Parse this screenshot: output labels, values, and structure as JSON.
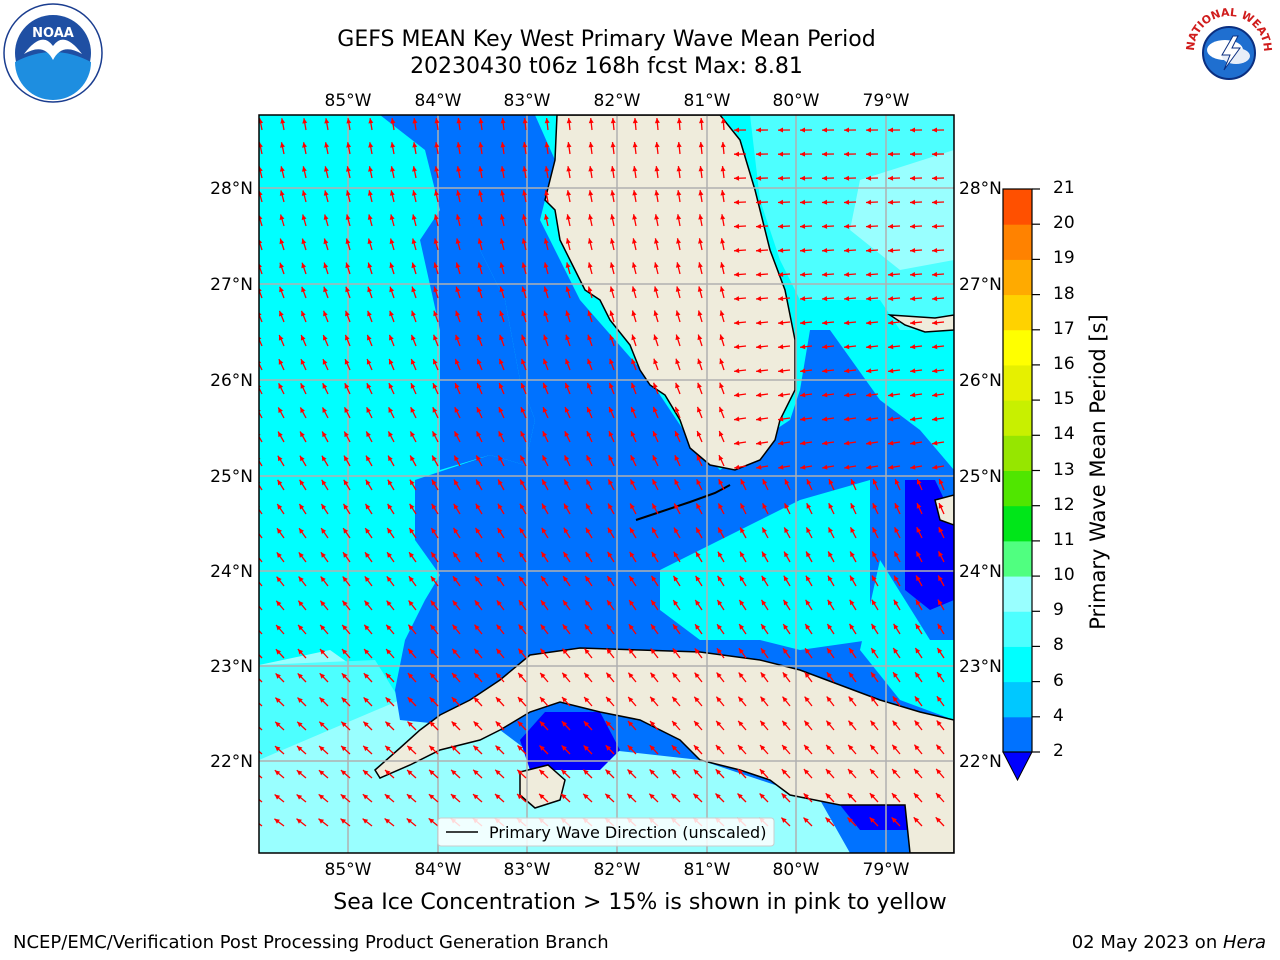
{
  "title": {
    "line1": "GEFS MEAN Key West Primary Wave Mean Period",
    "line2": "20230430 t06z 168h fcst   Max: 8.81"
  },
  "map": {
    "lon_labels": [
      "85°W",
      "84°W",
      "83°W",
      "82°W",
      "81°W",
      "80°W",
      "79°W"
    ],
    "lat_labels": [
      "28°N",
      "27°N",
      "26°N",
      "25°N",
      "24°N",
      "23°N",
      "22°N"
    ],
    "lon_range": [
      -86.0,
      -78.3
    ],
    "lat_range": [
      21.1,
      28.75
    ],
    "legend_label": "Primary Wave Direction (unscaled)",
    "arrow_color": "#ff0000",
    "land_color": "#efecdc"
  },
  "colorbar": {
    "label": "Primary Wave Mean Period [s]",
    "ticks": [
      "2",
      "4",
      "6",
      "8",
      "9",
      "10",
      "11",
      "12",
      "13",
      "14",
      "15",
      "16",
      "17",
      "18",
      "19",
      "20",
      "21"
    ],
    "colors": [
      "#0072ff",
      "#00c8ff",
      "#00ffff",
      "#4dffff",
      "#99ffff",
      "#50ff80",
      "#00e619",
      "#50e600",
      "#96e600",
      "#c8f000",
      "#e6f000",
      "#ffff00",
      "#ffd200",
      "#ffaa00",
      "#ff8200",
      "#ff5000",
      "#ff1e00",
      "#ff0000"
    ],
    "under_color": "#0000ff"
  },
  "note": "Sea Ice Concentration > 15% is shown in pink to yellow",
  "footer": {
    "left": "NCEP/EMC/Verification Post Processing Product Generation Branch",
    "date": "02 May 2023 on ",
    "host": "Hera"
  },
  "logos": {
    "noaa": "NOAA",
    "nws": "NATIONAL WEATHER SERVICE"
  }
}
